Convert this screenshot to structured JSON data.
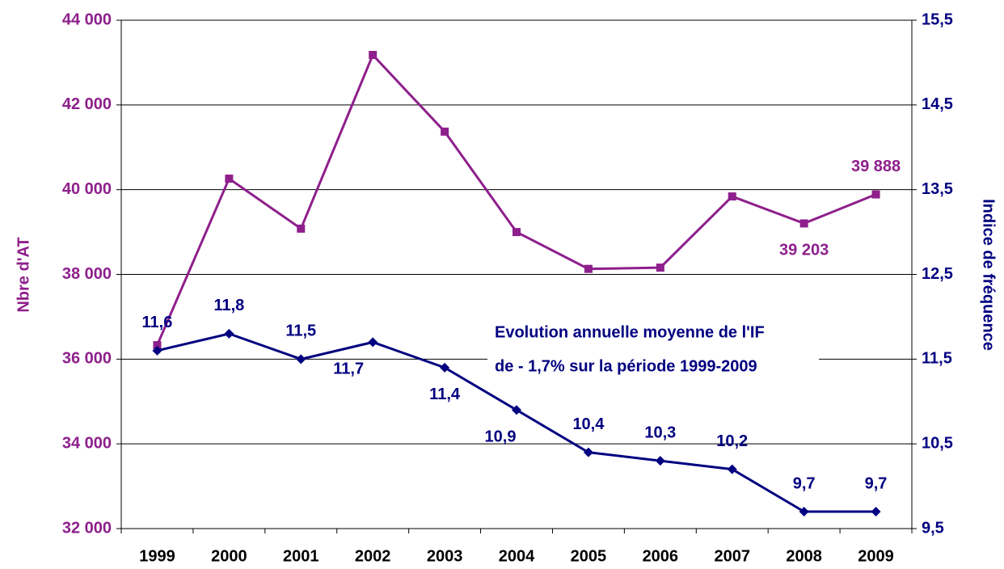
{
  "chart_data": {
    "type": "line",
    "categories": [
      "1999",
      "2000",
      "2001",
      "2002",
      "2003",
      "2004",
      "2005",
      "2006",
      "2007",
      "2008",
      "2009"
    ],
    "ylabel": "Nbre d'AT",
    "y2label": "Indice de fréquence",
    "annotation": [
      "Evolution annuelle moyenne de l'IF",
      "de - 1,7% sur la période 1999-2009"
    ],
    "ylim": [
      32000,
      44000
    ],
    "yticks": [
      {
        "value": 32000,
        "label": "32 000"
      },
      {
        "value": 34000,
        "label": "34 000"
      },
      {
        "value": 36000,
        "label": "36 000"
      },
      {
        "value": 38000,
        "label": "38 000"
      },
      {
        "value": 40000,
        "label": "40 000"
      },
      {
        "value": 42000,
        "label": "42 000"
      },
      {
        "value": 44000,
        "label": "44 000"
      }
    ],
    "y2lim": [
      9.5,
      15.5
    ],
    "y2ticks": [
      {
        "value": 9.5,
        "label": "9,5"
      },
      {
        "value": 10.5,
        "label": "10,5"
      },
      {
        "value": 11.5,
        "label": "11,5"
      },
      {
        "value": 12.5,
        "label": "12,5"
      },
      {
        "value": 13.5,
        "label": "13,5"
      },
      {
        "value": 14.5,
        "label": "14,5"
      },
      {
        "value": 15.5,
        "label": "15,5"
      }
    ],
    "grid": true,
    "series": [
      {
        "name": "Nbre d'AT",
        "color": "#8e1f8c",
        "marker": "square",
        "axis": "y",
        "values": [
          36330,
          40260,
          39080,
          43180,
          41370,
          39000,
          38130,
          38160,
          39840,
          39203,
          39888
        ],
        "value_labels": [
          null,
          null,
          null,
          null,
          null,
          null,
          null,
          null,
          null,
          "39 203",
          "39 888"
        ]
      },
      {
        "name": "Indice de fréquence",
        "color": "#000080",
        "marker": "diamond",
        "axis": "y2",
        "values": [
          11.6,
          11.8,
          11.5,
          11.7,
          11.4,
          10.9,
          10.4,
          10.3,
          10.2,
          9.7,
          9.7
        ],
        "value_labels": [
          "11,6",
          "11,8",
          "11,5",
          "11,7",
          "11,4",
          "10,9",
          "10,4",
          "10,3",
          "10,2",
          "9,7",
          "9,7"
        ]
      }
    ]
  }
}
